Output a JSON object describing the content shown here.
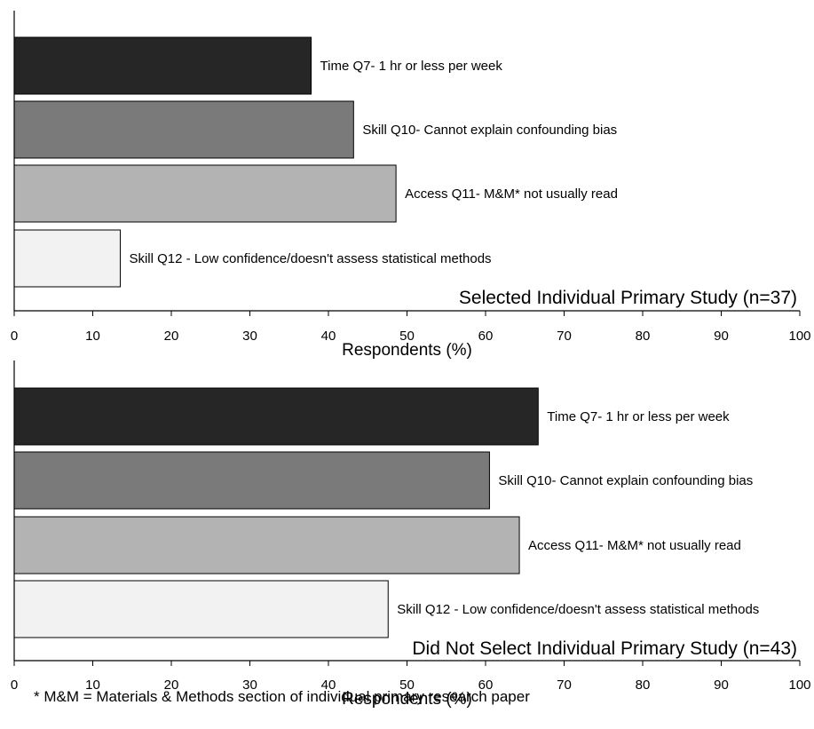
{
  "chart_data": [
    {
      "type": "bar",
      "orientation": "horizontal",
      "title": "Selected Individual Primary Study (n=37)",
      "xlabel": "Respondents (%)",
      "xlim": [
        0,
        100
      ],
      "xticks": [
        0,
        10,
        20,
        30,
        40,
        50,
        60,
        70,
        80,
        90,
        100
      ],
      "categories": [
        "Time Q7- 1 hr or less per week",
        "Skill Q10- Cannot explain confounding bias",
        "Access Q11- M&M* not usually read",
        "Skill Q12 - Low confidence/doesn't assess statistical methods"
      ],
      "values": [
        37.8,
        43.2,
        48.6,
        13.5
      ],
      "colors": [
        "#262626",
        "#7a7a7a",
        "#b3b3b3",
        "#f2f2f2"
      ],
      "grid": false,
      "legend": "none"
    },
    {
      "type": "bar",
      "orientation": "horizontal",
      "title": "Did Not Select Individual Primary Study (n=43)",
      "xlabel": "Respondents (%)",
      "xlim": [
        0,
        100
      ],
      "xticks": [
        0,
        10,
        20,
        30,
        40,
        50,
        60,
        70,
        80,
        90,
        100
      ],
      "categories": [
        "Time Q7- 1 hr or less per week",
        "Skill Q10- Cannot explain confounding bias",
        "Access Q11- M&M* not usually read",
        "Skill Q12 - Low confidence/doesn't assess statistical methods"
      ],
      "values": [
        66.7,
        60.5,
        64.3,
        47.6
      ],
      "colors": [
        "#262626",
        "#7a7a7a",
        "#b3b3b3",
        "#f2f2f2"
      ],
      "grid": false,
      "legend": "none"
    }
  ],
  "footnote": "* M&M = Materials & Methods section of individual primary research paper"
}
